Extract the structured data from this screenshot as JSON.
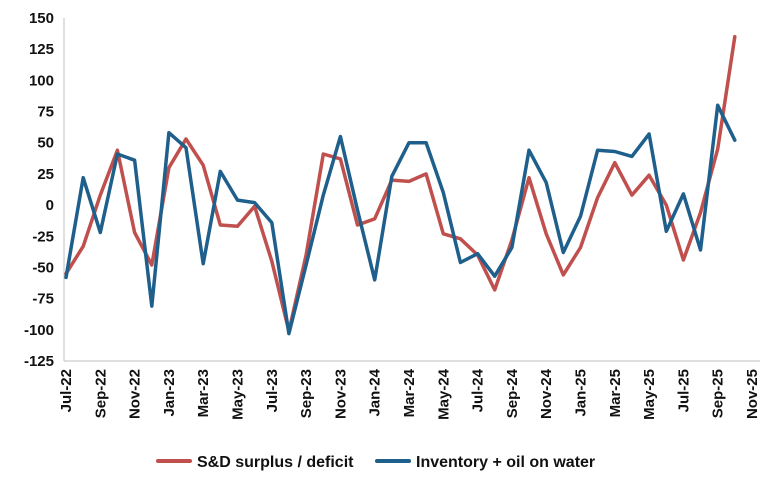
{
  "chart_data": {
    "type": "line",
    "title": "",
    "xlabel": "",
    "ylabel": "",
    "ylim": [
      -125,
      150
    ],
    "yticks": [
      150,
      125,
      100,
      75,
      50,
      25,
      0,
      -25,
      -50,
      -75,
      -100,
      -125
    ],
    "grid": false,
    "legend_position": "bottom",
    "x_tick_labels": [
      "Jul-22",
      "Sep-22",
      "Nov-22",
      "Jan-23",
      "Mar-23",
      "May-23",
      "Jul-23",
      "Sep-23",
      "Nov-23",
      "Jan-24",
      "Mar-24",
      "May-24",
      "Jul-24",
      "Sep-24",
      "Nov-24",
      "Jan-25",
      "Mar-25",
      "May-25",
      "Jul-25",
      "Sep-25",
      "Nov-25"
    ],
    "x": [
      "Jul-22",
      "Aug-22",
      "Sep-22",
      "Oct-22",
      "Nov-22",
      "Dec-22",
      "Jan-23",
      "Feb-23",
      "Mar-23",
      "Apr-23",
      "May-23",
      "Jun-23",
      "Jul-23",
      "Aug-23",
      "Sep-23",
      "Oct-23",
      "Nov-23",
      "Dec-23",
      "Jan-24",
      "Feb-24",
      "Mar-24",
      "Apr-24",
      "May-24",
      "Jun-24",
      "Jul-24",
      "Aug-24",
      "Sep-24",
      "Oct-24",
      "Nov-24",
      "Dec-24",
      "Jan-25",
      "Feb-25",
      "Mar-25",
      "Apr-25",
      "May-25",
      "Jun-25",
      "Jul-25",
      "Aug-25",
      "Sep-25",
      "Oct-25"
    ],
    "series": [
      {
        "name": "S&D surplus / deficit",
        "color": "#c0504d",
        "values": [
          -55,
          -33,
          8,
          44,
          -22,
          -48,
          30,
          53,
          32,
          -16,
          -17,
          -1,
          -45,
          -101,
          -40,
          41,
          37,
          -16,
          -11,
          20,
          19,
          25,
          -23,
          -27,
          -40,
          -68,
          -28,
          22,
          -23,
          -56,
          -34,
          6,
          34,
          8,
          24,
          0,
          -44,
          -6,
          45,
          135
        ]
      },
      {
        "name": "Inventory + oil on water",
        "color": "#1f5f8b",
        "values": [
          -58,
          22,
          -22,
          41,
          36,
          -81,
          58,
          46,
          -47,
          27,
          4,
          2,
          -14,
          -103,
          -48,
          8,
          55,
          -4,
          -60,
          23,
          50,
          50,
          10,
          -46,
          -39,
          -57,
          -34,
          44,
          18,
          -38,
          -9,
          44,
          43,
          39,
          57,
          -21,
          9,
          -36,
          80,
          52
        ]
      }
    ]
  }
}
